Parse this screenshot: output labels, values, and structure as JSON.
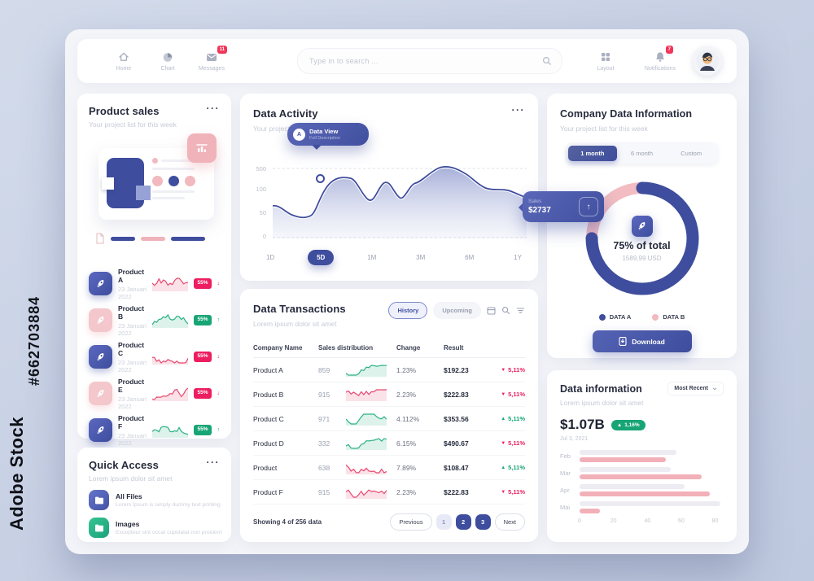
{
  "watermark": {
    "brand": "Adobe Stock",
    "id": "#662703884",
    "ghost": "Adobe Stock"
  },
  "nav": {
    "home": "Home",
    "chart": "Chart",
    "messages": "Messages",
    "messages_badge": "11",
    "search_placeholder": "Type in to search ...",
    "layout": "Layout",
    "notifications": "Notifications",
    "notifications_badge": "7"
  },
  "product_sales": {
    "title": "Product sales",
    "subtitle": "Your project list for this week",
    "menu": "···",
    "items": [
      {
        "name": "Product A",
        "date": "23 Januari 2022",
        "badge": "55%",
        "dir": "down",
        "icon": "blue",
        "spark": "red"
      },
      {
        "name": "Product B",
        "date": "23 Januari 2022",
        "badge": "55%",
        "dir": "up",
        "icon": "pink",
        "spark": "green"
      },
      {
        "name": "Product C",
        "date": "23 Januari 2022",
        "badge": "55%",
        "dir": "down",
        "icon": "blue",
        "spark": "red"
      },
      {
        "name": "Product E",
        "date": "23 Januari 2022",
        "badge": "55%",
        "dir": "down",
        "icon": "pink",
        "spark": "red"
      },
      {
        "name": "Product F",
        "date": "23 Januari 2022",
        "badge": "55%",
        "dir": "up",
        "icon": "blue",
        "spark": "green"
      }
    ]
  },
  "quick_access": {
    "title": "Quick Access",
    "subtitle": "Lorem ipsum dolor sit amet",
    "menu": "···",
    "items": [
      {
        "name": "All Files",
        "desc": "Lorem Ipsum is simply dummy text printing",
        "color": "blue"
      },
      {
        "name": "Images",
        "desc": "Excepteur sint occat cupidatat non proident",
        "color": "green"
      }
    ]
  },
  "data_activity": {
    "title": "Data Activity",
    "subtitle": "Your project list for this week",
    "menu": "···",
    "y_ticks": [
      "500",
      "100",
      "50",
      "0"
    ],
    "x_ticks": [
      "1D",
      "5D",
      "1M",
      "3M",
      "6M",
      "1Y"
    ],
    "active_range": "5D",
    "tooltip": {
      "marker": "A",
      "title": "Data View",
      "subtitle": "Full Description"
    },
    "sales_badge": {
      "label": "Sales",
      "value": "$2737"
    }
  },
  "data_transactions": {
    "title": "Data Transactions",
    "subtitle": "Lorem ipsum dolor sit amet",
    "filters": [
      "History",
      "Upcoming"
    ],
    "active_filter": "History",
    "columns": [
      "Company Name",
      "Sales distribution",
      "Change",
      "Result"
    ],
    "rows": [
      {
        "name": "Product A",
        "value": "859",
        "change": "1.23%",
        "result": "$192.23",
        "delta": "5,11%",
        "dir": "down",
        "spark": "green"
      },
      {
        "name": "Product B",
        "value": "915",
        "change": "2.23%",
        "result": "$222.83",
        "delta": "5,11%",
        "dir": "down",
        "spark": "red"
      },
      {
        "name": "Product C",
        "value": "971",
        "change": "4.112%",
        "result": "$353.56",
        "delta": "5,11%",
        "dir": "up",
        "spark": "green"
      },
      {
        "name": "Product D",
        "value": "332",
        "change": "6.15%",
        "result": "$490.67",
        "delta": "5,11%",
        "dir": "down",
        "spark": "green"
      },
      {
        "name": "Product",
        "value": "638",
        "change": "7.89%",
        "result": "$108.47",
        "delta": "5,11%",
        "dir": "up",
        "spark": "red"
      },
      {
        "name": "Product F",
        "value": "915",
        "change": "2.23%",
        "result": "$222.83",
        "delta": "5,11%",
        "dir": "down",
        "spark": "red"
      }
    ],
    "footer": {
      "summary": "Showing 4 of 256 data",
      "prev": "Previous",
      "pages": [
        "1",
        "2",
        "3"
      ],
      "next": "Next"
    }
  },
  "company_data": {
    "title": "Company Data Information",
    "subtitle": "Your project list for this week",
    "tabs": [
      "1 month",
      "6 month",
      "Custom"
    ],
    "active_tab": "1 month",
    "donut": {
      "percent_label": "75% of total",
      "amount": "1589,99 USD",
      "data_a_pct": 75,
      "data_b_pct": 25
    },
    "legend": [
      {
        "label": "DATA A",
        "color": "#3e4d9d"
      },
      {
        "label": "DATA B",
        "color": "#f2b9bf"
      }
    ],
    "download_label": "Download"
  },
  "data_information": {
    "title": "Data information",
    "subtitle": "Lorem ipsum dolor sit amet",
    "dropdown": "Most Recent",
    "value": "$1.07B",
    "delta": "1,16%",
    "date": "Jul 3, 2021",
    "chart": {
      "type": "bar",
      "categories": [
        "Feb",
        "Mar",
        "Apr",
        "Mai"
      ],
      "series": [
        {
          "name": "previous",
          "color": "#ececf2",
          "values": [
            57,
            54,
            62,
            83
          ]
        },
        {
          "name": "current",
          "color": "#f2b0b8",
          "values": [
            51,
            72,
            77,
            12
          ]
        }
      ],
      "x_ticks": [
        "0",
        "20",
        "40",
        "60",
        "80"
      ],
      "xmax": 85
    }
  }
}
